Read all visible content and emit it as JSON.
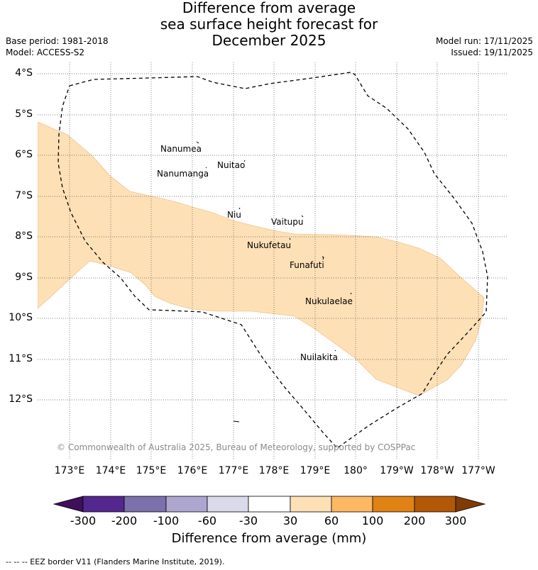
{
  "title": {
    "line1": "Difference from average",
    "line2": "sea surface height forecast for",
    "line3": "December 2025"
  },
  "meta_left": {
    "base_period": "Base period: 1981-2018",
    "model": "Model: ACCESS-S2"
  },
  "meta_right": {
    "model_run": "Model run: 17/11/2025",
    "issued": "Issued: 19/11/2025"
  },
  "map": {
    "latitude_labels": [
      "4°S",
      "5°S",
      "6°S",
      "7°S",
      "8°S",
      "9°S",
      "10°S",
      "11°S",
      "12°S"
    ],
    "longitude_labels": [
      "173°E",
      "174°E",
      "175°E",
      "176°E",
      "177°E",
      "178°E",
      "179°E",
      "180°",
      "179°W",
      "178°W",
      "177°W"
    ],
    "islands": [
      {
        "name": "Nanumea"
      },
      {
        "name": "Nuitao"
      },
      {
        "name": "Nanumanga"
      },
      {
        "name": "Niu"
      },
      {
        "name": "Vaitupu"
      },
      {
        "name": "Nukufetau"
      },
      {
        "name": "Funafuti"
      },
      {
        "name": "Nukulaelae"
      },
      {
        "name": "Nuilakita"
      }
    ],
    "anomaly_region_color": "#fde0b6",
    "anomaly_region_category": "30 to 60 mm",
    "eez_border_style": "dashed"
  },
  "copyright": "© Commonwealth of Australia 2025, Bureau of Meteorology, supported by COSPPac",
  "colorbar": {
    "ticks": [
      "-300",
      "-200",
      "-100",
      "-60",
      "-30",
      "30",
      "60",
      "100",
      "200",
      "300"
    ],
    "colors": [
      "#3f0f5c",
      "#54278f",
      "#7c70ad",
      "#ada7d0",
      "#dadaeb",
      "#ffffff",
      "#fde0b6",
      "#fdb863",
      "#e08214",
      "#b35806",
      "#7f3b08"
    ],
    "label": "Difference from average (mm)"
  },
  "footnote": "-- -- -- EEZ border V11 (Flanders Marine Institute, 2019)."
}
